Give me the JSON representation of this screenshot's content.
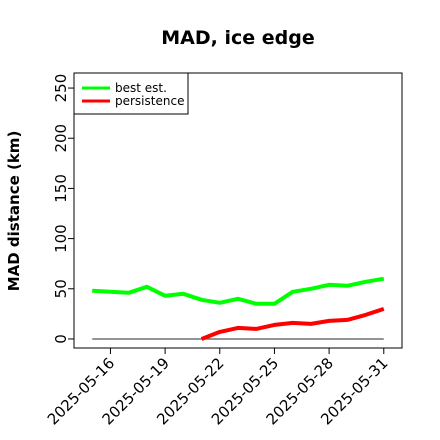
{
  "chart_data": {
    "type": "line",
    "title": "MAD, ice edge",
    "xlabel": "",
    "ylabel": "MAD distance (km)",
    "ylim": [
      0,
      250
    ],
    "yticks": [
      0,
      50,
      100,
      150,
      200,
      250
    ],
    "xlim": [
      "2025-05-14",
      "2025-06-01"
    ],
    "xticks": [
      "2025-05-16",
      "2025-05-19",
      "2025-05-22",
      "2025-05-25",
      "2025-05-28",
      "2025-05-31"
    ],
    "x": [
      "2025-05-15",
      "2025-05-16",
      "2025-05-17",
      "2025-05-18",
      "2025-05-19",
      "2025-05-20",
      "2025-05-21",
      "2025-05-22",
      "2025-05-23",
      "2025-05-24",
      "2025-05-25",
      "2025-05-26",
      "2025-05-27",
      "2025-05-28",
      "2025-05-29",
      "2025-05-30",
      "2025-05-31"
    ],
    "series": [
      {
        "name": "best est.",
        "color": "#00ff00",
        "values": [
          48,
          47,
          46,
          52,
          43,
          45,
          39,
          36,
          40,
          35,
          35,
          47,
          50,
          54,
          53,
          57,
          60
        ]
      },
      {
        "name": "persistence",
        "color": "#ff0000",
        "values": [
          null,
          null,
          null,
          null,
          null,
          null,
          0,
          7,
          11,
          10,
          14,
          16,
          15,
          18,
          19,
          24,
          30
        ]
      }
    ],
    "reference_line": {
      "y": 0,
      "color": "#555555"
    },
    "grid": false,
    "legend": "top-left"
  }
}
